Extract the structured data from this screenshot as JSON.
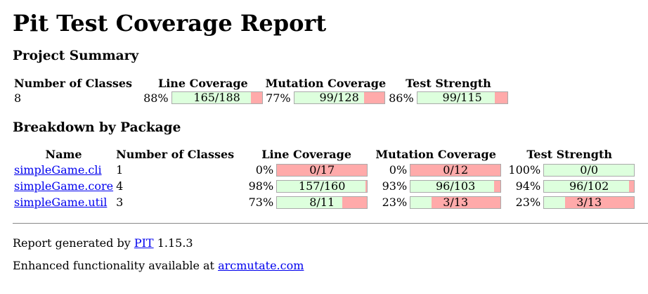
{
  "title": "Pit Test Coverage Report",
  "project_summary": {
    "heading": "Project Summary",
    "headers": {
      "classes": "Number of Classes",
      "line": "Line Coverage",
      "mutation": "Mutation Coverage",
      "strength": "Test Strength"
    },
    "classes": "8",
    "line_pct": "88%",
    "line_ratio": "165/188",
    "line_fraction": 0.8777,
    "mutation_pct": "77%",
    "mutation_ratio": "99/128",
    "mutation_fraction": 0.7734,
    "strength_pct": "86%",
    "strength_ratio": "99/115",
    "strength_fraction": 0.8609
  },
  "breakdown": {
    "heading": "Breakdown by Package",
    "headers": {
      "name": "Name",
      "classes": "Number of Classes",
      "line": "Line Coverage",
      "mutation": "Mutation Coverage",
      "strength": "Test Strength"
    },
    "packages": [
      {
        "name": "simpleGame.cli",
        "classes": "1",
        "line_pct": "0%",
        "line_ratio": "0/17",
        "line_fraction": 0,
        "mutation_pct": "0%",
        "mutation_ratio": "0/12",
        "mutation_fraction": 0,
        "strength_pct": "100%",
        "strength_ratio": "0/0",
        "strength_fraction": 1
      },
      {
        "name": "simpleGame.core",
        "classes": "4",
        "line_pct": "98%",
        "line_ratio": "157/160",
        "line_fraction": 0.98125,
        "mutation_pct": "93%",
        "mutation_ratio": "96/103",
        "mutation_fraction": 0.932,
        "strength_pct": "94%",
        "strength_ratio": "96/102",
        "strength_fraction": 0.941
      },
      {
        "name": "simpleGame.util",
        "classes": "3",
        "line_pct": "73%",
        "line_ratio": "8/11",
        "line_fraction": 0.727,
        "mutation_pct": "23%",
        "mutation_ratio": "3/13",
        "mutation_fraction": 0.2308,
        "strength_pct": "23%",
        "strength_ratio": "3/13",
        "strength_fraction": 0.2308
      }
    ]
  },
  "footer": {
    "generated_prefix": "Report generated by",
    "pit_link": "PIT",
    "version": "1.15.3",
    "enhanced_prefix": "Enhanced functionality available at",
    "arc_link": "arcmutate.com"
  },
  "colors": {
    "covered": "#ddffdd",
    "uncovered": "#ffaaaa",
    "link": "#0000ee"
  }
}
